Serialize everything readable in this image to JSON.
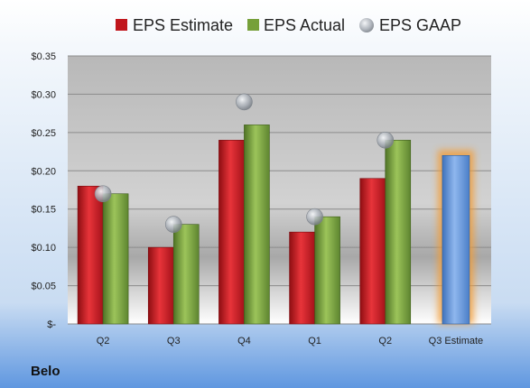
{
  "company": "Belo",
  "legend": [
    {
      "label": "EPS Estimate",
      "color": "#c0161c"
    },
    {
      "label": "EPS Actual",
      "color": "#76a03a"
    },
    {
      "label": "EPS GAAP",
      "color": "#aeb4bc"
    }
  ],
  "chart_data": {
    "type": "bar",
    "categories": [
      "Q2",
      "Q3",
      "Q4",
      "Q1",
      "Q2",
      "Q3 Estimate"
    ],
    "series": [
      {
        "name": "EPS Estimate",
        "values": [
          0.18,
          0.1,
          0.24,
          0.12,
          0.19,
          null
        ]
      },
      {
        "name": "EPS Actual",
        "values": [
          0.17,
          0.13,
          0.26,
          0.14,
          0.24,
          null
        ]
      },
      {
        "name": "EPS GAAP",
        "values": [
          0.17,
          0.13,
          0.29,
          0.14,
          0.24,
          null
        ]
      }
    ],
    "highlighted_estimate": {
      "category": "Q3 Estimate",
      "value": 0.22,
      "color": "#6a9be0",
      "glow_color": "#f39c34"
    },
    "ylim": [
      0,
      0.35
    ],
    "yticks": [
      0,
      0.05,
      0.1,
      0.15,
      0.2,
      0.25,
      0.3,
      0.35
    ],
    "ytick_labels": [
      "$-",
      "$0.05",
      "$0.10",
      "$0.15",
      "$0.20",
      "$0.25",
      "$0.30",
      "$0.35"
    ],
    "grid": true,
    "legend_position": "top",
    "title": "",
    "xlabel": "",
    "ylabel": ""
  }
}
